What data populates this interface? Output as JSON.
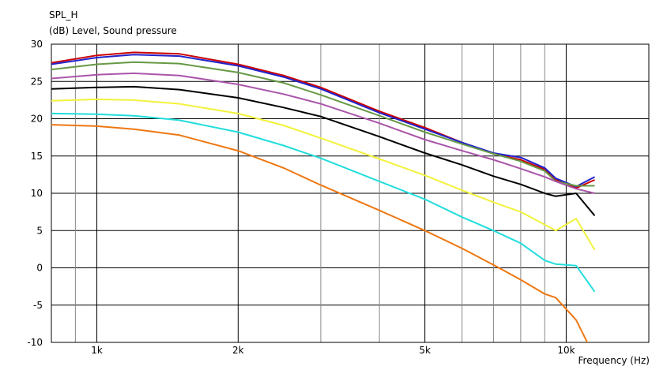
{
  "chart_data": {
    "type": "line",
    "title": "SPL_H",
    "subtitle": "(dB)  Level, Sound pressure",
    "xlabel": "Frequency  (Hz)",
    "ylabel": "",
    "xscale": "log",
    "xlim": [
      800,
      15000
    ],
    "ylim": [
      -10,
      30
    ],
    "grid": true,
    "legend": "none",
    "y_ticks": [
      {
        "v": 30,
        "label": "30"
      },
      {
        "v": 25,
        "label": "25"
      },
      {
        "v": 20,
        "label": "20"
      },
      {
        "v": 15,
        "label": "15"
      },
      {
        "v": 10,
        "label": "10"
      },
      {
        "v": 5,
        "label": "5"
      },
      {
        "v": 0,
        "label": "0"
      },
      {
        "v": -5,
        "label": "-5"
      },
      {
        "v": -10,
        "label": "-10"
      }
    ],
    "x_ticks": [
      {
        "v": 1000,
        "label": "1k"
      },
      {
        "v": 2000,
        "label": "2k"
      },
      {
        "v": 5000,
        "label": "5k"
      },
      {
        "v": 10000,
        "label": "10k"
      }
    ],
    "x_minor": [
      900,
      3000,
      4000,
      6000,
      7000,
      8000,
      9000
    ],
    "series": [
      {
        "color": "#cc0000",
        "x": [
          800,
          1000,
          1200,
          1500,
          2000,
          2500,
          3000,
          4000,
          5000,
          6000,
          7000,
          8000,
          9000,
          9500,
          10500,
          11500
        ],
        "y": [
          27.5,
          28.5,
          28.9,
          28.7,
          27.3,
          25.8,
          24.2,
          21.0,
          18.8,
          16.8,
          15.3,
          14.5,
          13.2,
          11.8,
          10.7,
          11.8
        ]
      },
      {
        "color": "#2222cc",
        "x": [
          800,
          1000,
          1200,
          1500,
          2000,
          2500,
          3000,
          4000,
          5000,
          6000,
          7000,
          8000,
          9000,
          9500,
          10500,
          11500
        ],
        "y": [
          27.3,
          28.2,
          28.6,
          28.4,
          27.1,
          25.6,
          24.0,
          20.8,
          18.6,
          16.8,
          15.4,
          14.8,
          13.4,
          12.0,
          10.9,
          12.2
        ]
      },
      {
        "color": "#669944",
        "x": [
          800,
          1000,
          1200,
          1500,
          2000,
          2500,
          3000,
          4000,
          5000,
          6000,
          7000,
          8000,
          9000,
          9500,
          10500,
          11500
        ],
        "y": [
          26.6,
          27.3,
          27.6,
          27.4,
          26.2,
          24.8,
          23.2,
          20.4,
          18.2,
          16.6,
          15.3,
          14.3,
          13.0,
          11.6,
          11.0,
          11.0
        ]
      },
      {
        "color": "#aa55aa",
        "x": [
          800,
          1000,
          1200,
          1500,
          2000,
          2500,
          3000,
          4000,
          5000,
          6000,
          7000,
          8000,
          9000,
          9500,
          10500,
          11500
        ],
        "y": [
          25.4,
          25.9,
          26.1,
          25.8,
          24.6,
          23.3,
          22.0,
          19.4,
          17.2,
          15.7,
          14.5,
          13.3,
          12.2,
          11.6,
          10.6,
          10.0
        ]
      },
      {
        "color": "#000000",
        "x": [
          800,
          1000,
          1200,
          1500,
          2000,
          2500,
          3000,
          4000,
          5000,
          6000,
          7000,
          8000,
          9000,
          9500,
          10500,
          11500
        ],
        "y": [
          24.0,
          24.2,
          24.3,
          23.9,
          22.8,
          21.5,
          20.3,
          17.6,
          15.4,
          13.8,
          12.3,
          11.2,
          10.0,
          9.6,
          10.0,
          7.0
        ]
      },
      {
        "color": "#f2f23c",
        "x": [
          800,
          1000,
          1200,
          1500,
          2000,
          2500,
          3000,
          4000,
          5000,
          6000,
          7000,
          8000,
          9000,
          9500,
          10500,
          11500
        ],
        "y": [
          22.4,
          22.6,
          22.5,
          22.0,
          20.7,
          19.1,
          17.4,
          14.6,
          12.4,
          10.4,
          8.8,
          7.5,
          5.8,
          5.0,
          6.6,
          2.4
        ]
      },
      {
        "color": "#22dddd",
        "x": [
          800,
          1000,
          1200,
          1500,
          2000,
          2500,
          3000,
          4000,
          5000,
          6000,
          7000,
          8000,
          9000,
          9500,
          10500,
          11500
        ],
        "y": [
          20.7,
          20.6,
          20.4,
          19.8,
          18.2,
          16.4,
          14.7,
          11.6,
          9.2,
          6.8,
          5.0,
          3.3,
          1.0,
          0.5,
          0.3,
          -3.2
        ]
      },
      {
        "color": "#ee7711",
        "x": [
          800,
          1000,
          1200,
          1500,
          2000,
          2500,
          3000,
          4000,
          5000,
          6000,
          7000,
          8000,
          9000,
          9500,
          10500,
          11500
        ],
        "y": [
          19.2,
          19.0,
          18.6,
          17.8,
          15.7,
          13.4,
          11.1,
          7.7,
          5.0,
          2.6,
          0.4,
          -1.6,
          -3.5,
          -4.0,
          -7.0,
          -12.0
        ]
      }
    ]
  }
}
